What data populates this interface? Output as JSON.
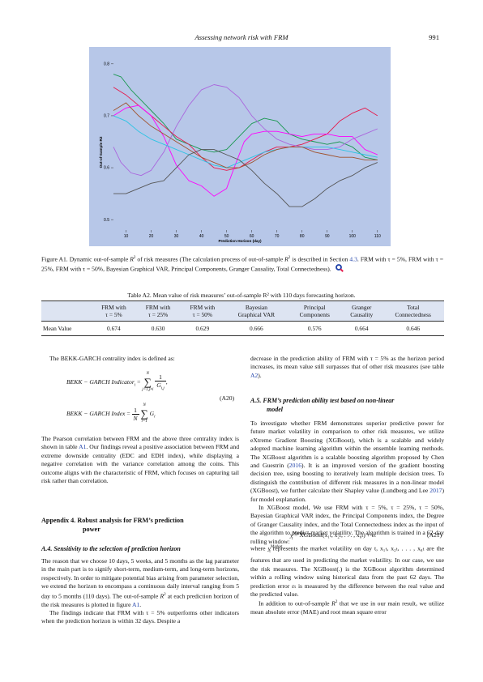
{
  "header": {
    "title": "Assessing network risk with FRM",
    "page_number": "991"
  },
  "figure": {
    "ylabel": "Out-of-Sample R2",
    "xlabel": "Prediction Horizon (day)",
    "caption_prefix": "Figure A1.",
    "caption_text_1": "Dynamic out-of-sample ",
    "caption_text_2": " of risk measures (The calculation process of out-of-sample ",
    "caption_text_3": " is described in Section ",
    "caption_section_ref": "4.3",
    "caption_text_4": ". FRM with τ = 5%, FRM with τ = 25%, FRM with τ = 50%, Bayesian Graphical VAR, Principal Components, Granger Causality, Total Connectedness).",
    "colors": {
      "background": "#b7c7e8",
      "magnifier": "#1c3fa8"
    }
  },
  "chart_data": {
    "type": "line",
    "xlabel": "Prediction Horizon (day)",
    "ylabel": "Out-of-Sample R2",
    "x_ticks": [
      10,
      20,
      30,
      40,
      50,
      60,
      70,
      80,
      90,
      100,
      110
    ],
    "y_ticks": [
      0.5,
      0.6,
      0.7,
      0.8
    ],
    "xlim": [
      5,
      112
    ],
    "ylim": [
      0.48,
      0.82
    ],
    "grid": false,
    "legend": "none",
    "series": [
      {
        "color": "#1a9850",
        "x": [
          5,
          8,
          12,
          16,
          20,
          25,
          30,
          35,
          40,
          45,
          50,
          55,
          60,
          65,
          70,
          75,
          80,
          85,
          90,
          95,
          100,
          105,
          110
        ],
        "y": [
          0.78,
          0.775,
          0.75,
          0.73,
          0.71,
          0.685,
          0.655,
          0.645,
          0.635,
          0.63,
          0.635,
          0.66,
          0.685,
          0.695,
          0.69,
          0.665,
          0.655,
          0.65,
          0.645,
          0.65,
          0.64,
          0.62,
          0.615
        ]
      },
      {
        "color": "#e6194b",
        "x": [
          5,
          10,
          15,
          20,
          25,
          30,
          35,
          40,
          45,
          50,
          55,
          60,
          65,
          70,
          75,
          80,
          85,
          90,
          95,
          100,
          105,
          110
        ],
        "y": [
          0.755,
          0.74,
          0.72,
          0.7,
          0.68,
          0.66,
          0.645,
          0.62,
          0.6,
          0.595,
          0.6,
          0.615,
          0.63,
          0.64,
          0.64,
          0.645,
          0.655,
          0.665,
          0.69,
          0.705,
          0.715,
          0.7
        ]
      },
      {
        "color": "#ff00ff",
        "x": [
          5,
          10,
          15,
          20,
          25,
          30,
          35,
          40,
          45,
          50,
          53,
          57,
          60,
          65,
          70,
          75,
          80,
          85,
          90,
          95,
          100,
          105,
          110
        ],
        "y": [
          0.7,
          0.715,
          0.72,
          0.7,
          0.66,
          0.605,
          0.575,
          0.565,
          0.545,
          0.56,
          0.6,
          0.65,
          0.665,
          0.67,
          0.67,
          0.665,
          0.66,
          0.665,
          0.665,
          0.66,
          0.66,
          0.635,
          0.625
        ]
      },
      {
        "color": "#aa66dd",
        "x": [
          5,
          8,
          12,
          16,
          20,
          25,
          30,
          35,
          40,
          45,
          50,
          55,
          60,
          65,
          70,
          75,
          80,
          85,
          90,
          95,
          100,
          105,
          110
        ],
        "y": [
          0.64,
          0.61,
          0.59,
          0.585,
          0.595,
          0.63,
          0.68,
          0.72,
          0.75,
          0.76,
          0.755,
          0.735,
          0.7,
          0.675,
          0.655,
          0.645,
          0.64,
          0.635,
          0.635,
          0.64,
          0.655,
          0.665,
          0.675
        ]
      },
      {
        "color": "#2bc4e4",
        "x": [
          5,
          10,
          15,
          20,
          25,
          30,
          35,
          40,
          45,
          50,
          55,
          60,
          65,
          70,
          75,
          80,
          85,
          90,
          95,
          100,
          105,
          110
        ],
        "y": [
          0.7,
          0.69,
          0.67,
          0.655,
          0.645,
          0.635,
          0.625,
          0.615,
          0.605,
          0.6,
          0.61,
          0.62,
          0.63,
          0.635,
          0.64,
          0.64,
          0.64,
          0.64,
          0.635,
          0.63,
          0.625,
          0.62
        ]
      },
      {
        "color": "#a0522d",
        "x": [
          5,
          10,
          15,
          20,
          25,
          30,
          35,
          40,
          45,
          50,
          55,
          60,
          65,
          70,
          75,
          80,
          85,
          90,
          95,
          100,
          105,
          110
        ],
        "y": [
          0.71,
          0.725,
          0.7,
          0.68,
          0.665,
          0.65,
          0.635,
          0.62,
          0.61,
          0.6,
          0.6,
          0.61,
          0.625,
          0.635,
          0.64,
          0.64,
          0.63,
          0.625,
          0.62,
          0.62,
          0.615,
          0.615
        ]
      },
      {
        "color": "#555555",
        "x": [
          5,
          10,
          15,
          20,
          25,
          30,
          35,
          40,
          45,
          50,
          55,
          60,
          65,
          70,
          75,
          80,
          85,
          90,
          95,
          100,
          105,
          110
        ],
        "y": [
          0.55,
          0.55,
          0.56,
          0.57,
          0.575,
          0.6,
          0.625,
          0.635,
          0.635,
          0.625,
          0.615,
          0.595,
          0.57,
          0.55,
          0.525,
          0.525,
          0.54,
          0.56,
          0.575,
          0.585,
          0.6,
          0.61
        ]
      }
    ]
  },
  "table": {
    "caption": "Table  A2.  Mean value of risk measures’ out-of-sample R² with 110 days forecasting horizon.",
    "headers": [
      {
        "l1": "",
        "l2": ""
      },
      {
        "l1": "FRM with",
        "l2": "τ = 5%"
      },
      {
        "l1": "FRM with",
        "l2": "τ = 25%"
      },
      {
        "l1": "FRM with",
        "l2": "τ = 50%"
      },
      {
        "l1": "Bayesian",
        "l2": "Graphical VAR"
      },
      {
        "l1": "Principal",
        "l2": "Components"
      },
      {
        "l1": "Granger",
        "l2": "Causality"
      },
      {
        "l1": "Total",
        "l2": "Connectedness"
      }
    ],
    "row_label": "Mean Value",
    "values": [
      "0.674",
      "0.630",
      "0.629",
      "0.666",
      "0.576",
      "0.664",
      "0.646"
    ]
  },
  "left": {
    "intro": "The BEKK-GARCH centrality index is defined as:",
    "eq1_lhs": "BEKK − GARCH Indicator",
    "eq1_sub": "i",
    "eq1_upper": "N",
    "eq1_lower": "j=1,j≠i",
    "eq1_num": "1",
    "eq1_den": "G",
    "eq1_den_sub": "i,j",
    "eq2_lhs": "BEKK − GARCH Index",
    "eq2_num": "1",
    "eq2_den": "N",
    "eq2_upper": "N",
    "eq2_lower": "i=1",
    "eq2_term": "G",
    "eq2_term_sub": "i",
    "eq_number": "(A20)",
    "para1_a": "The Pearson correlation between FRM and the above three centrality index is shown in table ",
    "para1_ref": "A1",
    "para1_b": ". Our findings reveal a positive association between FRM and extreme downside centrality (EDC and EDH index), while displaying a negative correlation with the variance correlation among the coins. This outcome aligns with the characteristic of FRM, which focuses on capturing tail risk rather than correlation.",
    "appendix_head_1": "Appendix 4.  Robust analysis for FRM’s prediction",
    "appendix_head_2": "power",
    "sub_a4": "A.4.  Sensitivity to the selection of prediction horizon",
    "para2_a": "The reason that we choose 10 days, 5 weeks, and 5 months as the lag parameter in the main part is to signify short-term, medium-term, and long-term horizons, respectively. In order to mitigate potential bias arising from parameter selection, we extend the horizon to encompass a continuous daily interval ranging from 5 day to 5 months (110 days). The out-of-sample ",
    "para2_b": " at each prediction horizon of the risk measures is plotted in figure ",
    "para2_ref": "A1",
    "para2_c": ".",
    "para3": "The findings indicate that FRM with τ = 5% outperforms other indicators when the prediction horizon is within 32 days. Despite a"
  },
  "right": {
    "para1_a": "decrease in the prediction ability of FRM with τ = 5% as the horizon period increases, its mean value still surpasses that of other risk measures (see table ",
    "para1_ref": "A2",
    "para1_b": ").",
    "sub_a5_1": "A.5.  FRM’s prediction ability test based on non-linear",
    "sub_a5_2": "model",
    "para2_a": "To investigate whether FRM demonstrates superior predictive power for future market volatility in comparison to other risk measures, we utilize eXtreme Gradient Boosting (XGBoost), which is a scalable and widely adopted machine learning algorithm within the ensemble learning methods. The XGBoost algorithm is a scalable boosting algorithm proposed by Chen and Guestrin (",
    "para2_ref1": "2016",
    "para2_b": "). It is an improved version of the gradient boosting decision tree, using boosting to iteratively learn multiple decision trees. To distinguish the contribution of different risk measures in a non-linear model (XGBoost), we further calculate their Shapley value (Lundberg and Lee ",
    "para2_ref2": "2017",
    "para2_c": ") for model explanation.",
    "para3": "In XGBoost model, We use FRM with τ = 5%, τ = 25%, τ = 50%, Bayesian Graphical VAR index, the Principal Components index, the Degree of Granger Causality index, and the Total Connectedness index as the input of the algorithm to predict market volatility. The algorithm is trained in a 62-day rolling window:",
    "eq_lhs": "y",
    "eq_sup": "Market",
    "eq_sub": "t",
    "eq_rhs": " = XGBoost(x₁ₜ, x₂ₜ, . . . , x₈ₜ) + εₜ",
    "eq_number": "(A21)",
    "para4_a": "where ",
    "para4_b": " represents the market volatility on day t, x₁ₜ, x₂ₜ, . . . , x₈ₜ are the features that are used in predicting the market volatility. In our case, we use the risk measures. The XGBoost(.) is the XGBoost algorithm determined within a rolling window using historical data from the past 62 days. The prediction error εₜ is measured by the difference between the real value and the predicted value.",
    "para5_a": "In addition to out-of-sample ",
    "para5_b": " that we use in our main result, we utilize mean absolute error (MAE) and root mean square error"
  }
}
